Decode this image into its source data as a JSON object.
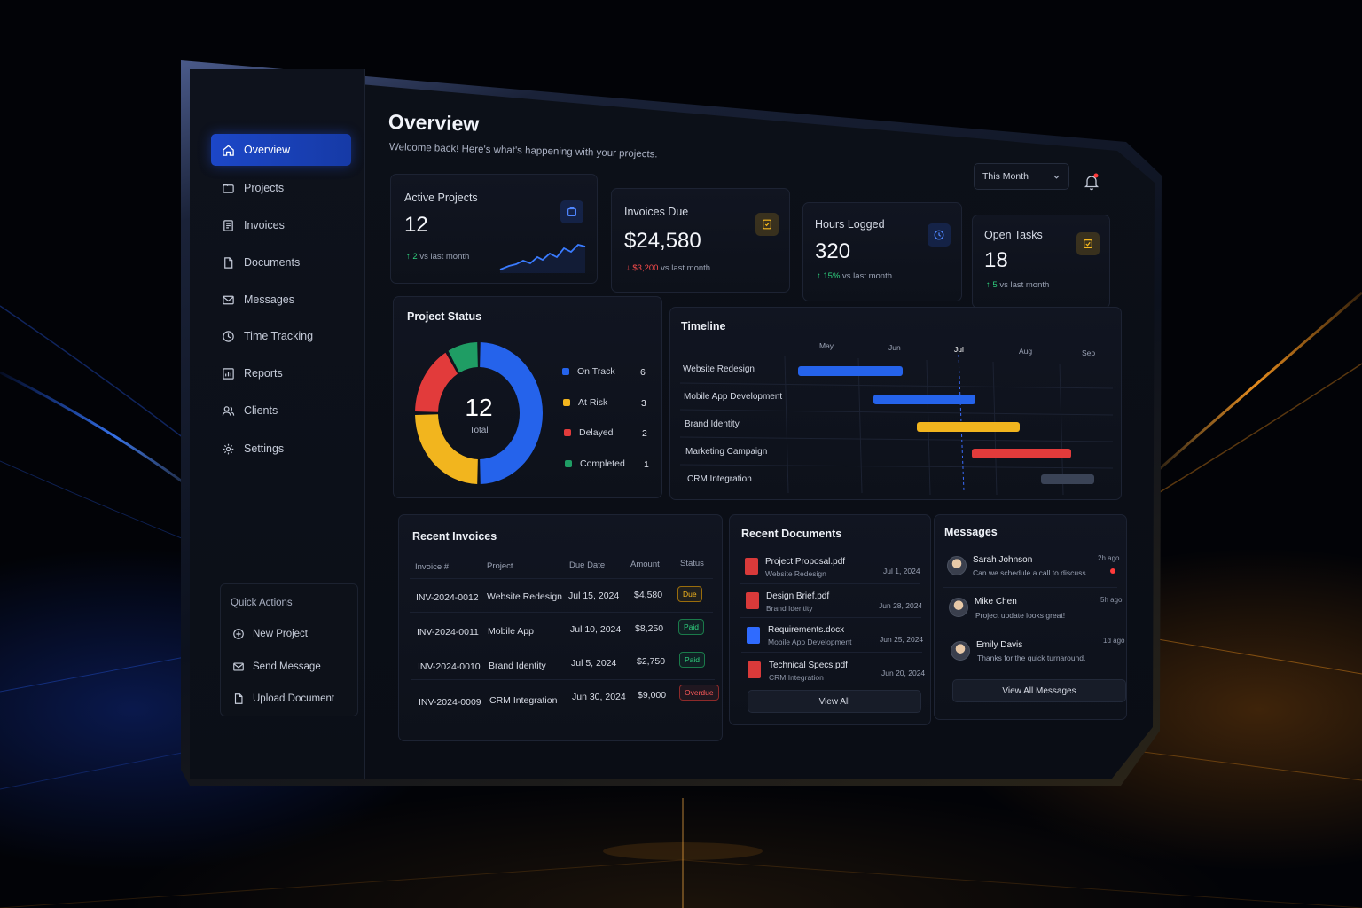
{
  "sidebar": {
    "items": [
      {
        "label": "Overview",
        "icon": "home-icon",
        "active": true
      },
      {
        "label": "Projects",
        "icon": "folder-icon"
      },
      {
        "label": "Invoices",
        "icon": "invoice-icon"
      },
      {
        "label": "Documents",
        "icon": "document-icon"
      },
      {
        "label": "Messages",
        "icon": "mail-icon"
      },
      {
        "label": "Time Tracking",
        "icon": "clock-icon"
      },
      {
        "label": "Reports",
        "icon": "chart-icon"
      },
      {
        "label": "Clients",
        "icon": "users-icon"
      },
      {
        "label": "Settings",
        "icon": "gear-icon"
      }
    ],
    "quick_actions": {
      "title": "Quick Actions",
      "items": [
        {
          "label": "New Project",
          "icon": "plus-circle-icon"
        },
        {
          "label": "Send Message",
          "icon": "mail-icon"
        },
        {
          "label": "Upload Document",
          "icon": "document-icon"
        }
      ]
    }
  },
  "header": {
    "title": "Overview",
    "subtitle": "Welcome back! Here's what's happening with your projects.",
    "period": "This Month"
  },
  "stats": [
    {
      "label": "Active Projects",
      "value": "12",
      "delta_value": "2",
      "delta_text": "vs last month",
      "direction": "up",
      "icon": "folder-icon",
      "accent": "#2f6bff"
    },
    {
      "label": "Invoices Due",
      "value": "$24,580",
      "delta_value": "$3,200",
      "delta_text": "vs last month",
      "direction": "down",
      "icon": "invoice-icon",
      "accent": "#f6b81e"
    },
    {
      "label": "Hours Logged",
      "value": "320",
      "delta_value": "15%",
      "delta_text": "vs last month",
      "direction": "up",
      "icon": "clock-icon",
      "accent": "#2f6bff"
    },
    {
      "label": "Open Tasks",
      "value": "18",
      "delta_value": "5",
      "delta_text": "vs last month",
      "direction": "up",
      "icon": "check-square-icon",
      "accent": "#f6b81e"
    }
  ],
  "project_status": {
    "title": "Project Status",
    "total": "12",
    "total_label": "Total",
    "items": [
      {
        "label": "On Track",
        "value": 6,
        "color": "#2563eb"
      },
      {
        "label": "At Risk",
        "value": 3,
        "color": "#f2b51e"
      },
      {
        "label": "Delayed",
        "value": 2,
        "color": "#e23b3b"
      },
      {
        "label": "Completed",
        "value": 1,
        "color": "#1f9d64"
      }
    ]
  },
  "timeline": {
    "title": "Timeline",
    "months": [
      "May",
      "Jun",
      "Jul",
      "Aug",
      "Sep"
    ],
    "current_month": "Jul",
    "tasks": [
      {
        "label": "Website Redesign",
        "color": "#2563eb"
      },
      {
        "label": "Mobile App Development",
        "color": "#2563eb"
      },
      {
        "label": "Brand Identity",
        "color": "#f2b51e"
      },
      {
        "label": "Marketing Campaign",
        "color": "#e23b3b"
      },
      {
        "label": "CRM Integration",
        "color": "#3a4356"
      }
    ]
  },
  "invoices": {
    "title": "Recent Invoices",
    "columns": [
      "Invoice #",
      "Project",
      "Due Date",
      "Amount",
      "Status"
    ],
    "rows": [
      {
        "id": "INV-2024-0012",
        "project": "Website Redesign",
        "due": "Jul 15, 2024",
        "amount": "$4,580",
        "status": "Due"
      },
      {
        "id": "INV-2024-0011",
        "project": "Mobile App",
        "due": "Jul 10, 2024",
        "amount": "$8,250",
        "status": "Paid"
      },
      {
        "id": "INV-2024-0010",
        "project": "Brand Identity",
        "due": "Jul 5, 2024",
        "amount": "$2,750",
        "status": "Paid"
      },
      {
        "id": "INV-2024-0009",
        "project": "CRM Integration",
        "due": "Jun 30, 2024",
        "amount": "$9,000",
        "status": "Overdue"
      }
    ]
  },
  "documents": {
    "title": "Recent Documents",
    "items": [
      {
        "name": "Project Proposal.pdf",
        "project": "Website Redesign",
        "date": "Jul 1, 2024",
        "type": "pdf"
      },
      {
        "name": "Design Brief.pdf",
        "project": "Brand Identity",
        "date": "Jun 28, 2024",
        "type": "pdf"
      },
      {
        "name": "Requirements.docx",
        "project": "Mobile App Development",
        "date": "Jun 25, 2024",
        "type": "docx"
      },
      {
        "name": "Technical Specs.pdf",
        "project": "CRM Integration",
        "date": "Jun 20, 2024",
        "type": "pdf"
      }
    ],
    "view_all": "View All"
  },
  "messages": {
    "title": "Messages",
    "items": [
      {
        "name": "Sarah Johnson",
        "text": "Can we schedule a call to discuss...",
        "time": "2h ago",
        "unread": true
      },
      {
        "name": "Mike Chen",
        "text": "Project update looks great!",
        "time": "5h ago",
        "unread": false
      },
      {
        "name": "Emily Davis",
        "text": "Thanks for the quick turnaround.",
        "time": "1d ago",
        "unread": false
      }
    ],
    "view_all": "View All Messages"
  },
  "colors": {
    "brand_blue": "#1c47c8",
    "accent_orange": "#ff9a1f",
    "background": "#0a0d15"
  }
}
